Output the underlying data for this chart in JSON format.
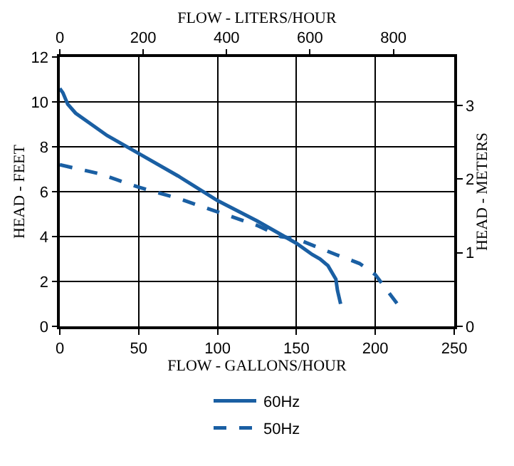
{
  "chart_data": {
    "type": "line",
    "xlabel": "FLOW - GALLONS/HOUR",
    "x2label": "FLOW - LITERS/HOUR",
    "ylabel": "HEAD - FEET",
    "y2label": "HEAD - METERS",
    "xlim": [
      0,
      250
    ],
    "xticks": [
      0,
      50,
      100,
      150,
      200,
      250
    ],
    "x2lim": [
      0,
      946
    ],
    "x2ticks": [
      0,
      200,
      400,
      600,
      800
    ],
    "ylim": [
      0,
      12
    ],
    "yticks": [
      0,
      2,
      4,
      6,
      8,
      10,
      12
    ],
    "y2lim": [
      0,
      3.658
    ],
    "y2ticks": [
      0,
      1,
      2,
      3
    ],
    "grid": true,
    "legend": "bottom",
    "marker": "none",
    "series": [
      {
        "name": "60Hz",
        "color": "#1a5fa3",
        "line_style": "solid",
        "x": [
          0,
          2,
          5,
          10,
          20,
          30,
          50,
          75,
          100,
          125,
          150,
          160,
          165,
          170,
          175,
          176,
          178
        ],
        "values": [
          10.6,
          10.4,
          9.9,
          9.5,
          9.0,
          8.5,
          7.7,
          6.7,
          5.6,
          4.7,
          3.7,
          3.2,
          3.0,
          2.7,
          2.1,
          1.6,
          1.0
        ]
      },
      {
        "name": "50Hz",
        "color": "#1a5fa3",
        "line_style": "dashed",
        "x": [
          0,
          25,
          50,
          75,
          100,
          125,
          140,
          150,
          175,
          190,
          200,
          215
        ],
        "values": [
          7.2,
          6.8,
          6.2,
          5.7,
          5.1,
          4.5,
          4.0,
          3.9,
          3.2,
          2.8,
          2.3,
          0.9
        ]
      }
    ]
  }
}
